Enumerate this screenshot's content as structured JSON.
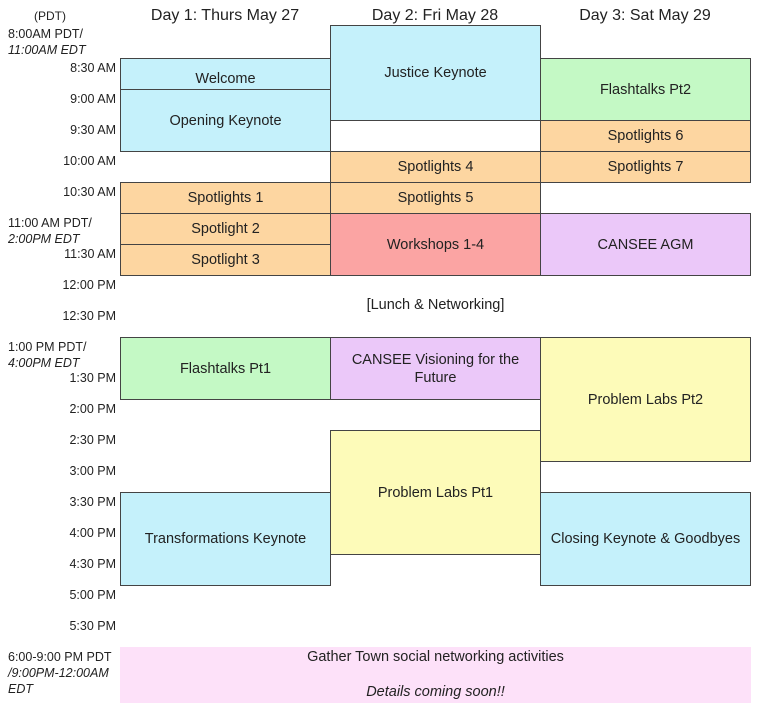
{
  "timezone_label": "(PDT)",
  "days": [
    "Day 1: Thurs May 27",
    "Day 2: Fri May 28",
    "Day 3: Sat May 29"
  ],
  "time_labels": {
    "t0800_a": "8:00AM PDT/",
    "t0800_b": "11:00AM EDT",
    "t0830": "8:30 AM",
    "t0900": "9:00 AM",
    "t0930": "9:30 AM",
    "t1000": "10:00 AM",
    "t1030": "10:30 AM",
    "t1100_a": "11:00 AM PDT/",
    "t1100_b": "2:00PM EDT",
    "t1130": "11:30 AM",
    "t1200": "12:00 PM",
    "t1230": "12:30 PM",
    "t1300_a": "1:00 PM PDT/",
    "t1300_b": "4:00PM EDT",
    "t1330": "1:30 PM",
    "t1400": "2:00 PM",
    "t1430": "2:30 PM",
    "t1500": "3:00 PM",
    "t1530": "3:30 PM",
    "t1600": "4:00 PM",
    "t1630": "4:30 PM",
    "t1700": "5:00 PM",
    "t1730": "5:30 PM",
    "t1800_a": "6:00-9:00 PM PDT",
    "t1800_b": "/9:00PM-12:00AM",
    "t1800_c": "EDT"
  },
  "sessions": {
    "d1_welcome": "Welcome",
    "d1_opening": "Opening Keynote",
    "d1_spot1": "Spotlights 1",
    "d1_spot2": "Spotlight 2",
    "d1_spot3": "Spotlight 3",
    "d1_flash1": "Flashtalks Pt1",
    "d1_transform": "Transformations Keynote",
    "d2_justice": "Justice Keynote",
    "d2_spot4": "Spotlights 4",
    "d2_spot5": "Spotlights 5",
    "d2_workshops": "Workshops 1-4",
    "d2_vision": "CANSEE Visioning for the Future",
    "d2_labs1": "Problem Labs Pt1",
    "d3_flash2": "Flashtalks Pt2",
    "d3_spot6": "Spotlights 6",
    "d3_spot7": "Spotlights 7",
    "d3_agm": "CANSEE AGM",
    "d3_labs2": "Problem Labs Pt2",
    "d3_closing": "Closing Keynote & Goodbyes"
  },
  "lunch": "[Lunch & Networking]",
  "evening": {
    "title": "Gather Town social networking activities",
    "note": "Details coming soon!!"
  }
}
